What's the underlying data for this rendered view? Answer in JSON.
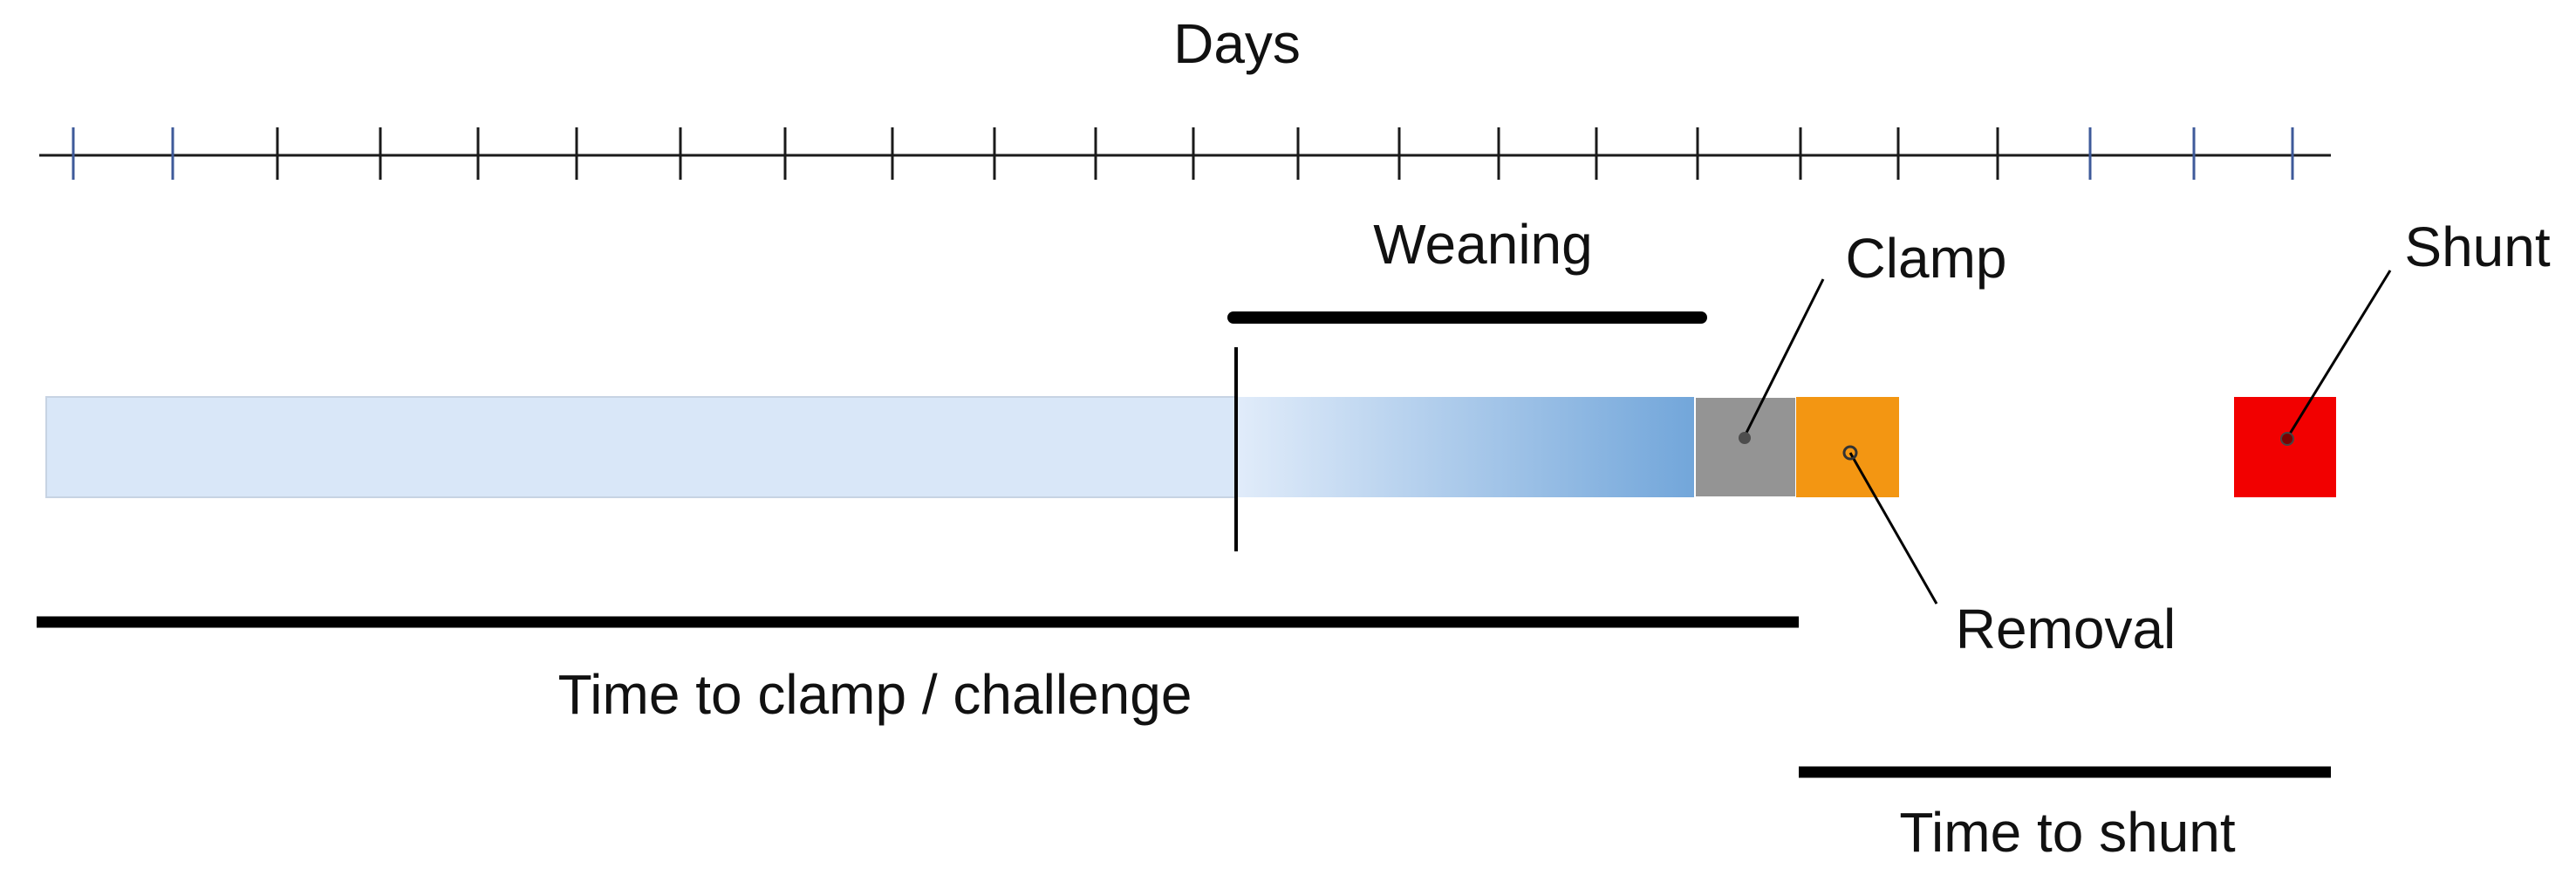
{
  "title": "Days",
  "phases": {
    "weaning": "Weaning",
    "time_to_clamp": "Time to clamp / challenge",
    "time_to_shunt": "Time to shunt"
  },
  "events": {
    "clamp": "Clamp",
    "removal": "Removal",
    "shunt": "Shunt"
  },
  "colors": {
    "baseline_bar": "#d9e7f8",
    "weaning_bar_start": "#e1ecfa",
    "weaning_bar_end": "#72a6da",
    "clamp_block": "#949494",
    "removal_block": "#f39612",
    "shunt_block": "#f20000",
    "tick_outer": "#3e5a9a",
    "tick_inner": "#1a1a1a",
    "line": "#000000"
  }
}
